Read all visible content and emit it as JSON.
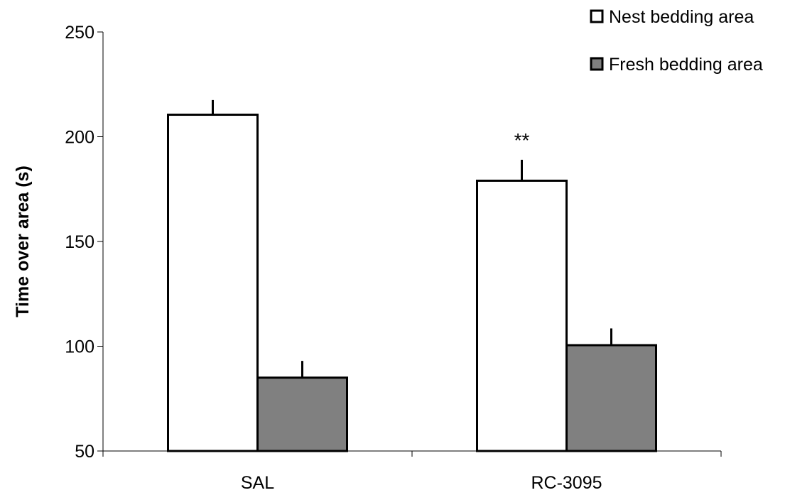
{
  "chart_data": {
    "type": "bar",
    "categories": [
      "SAL",
      "RC-3095"
    ],
    "series": [
      {
        "name": "Nest bedding area",
        "values": [
          210.5,
          179
        ],
        "errors": [
          7,
          10
        ],
        "color": "#ffffff"
      },
      {
        "name": "Fresh bedding area",
        "values": [
          85,
          100.5
        ],
        "errors": [
          8,
          8
        ],
        "color": "#808080"
      }
    ],
    "ylabel": "Time over area (s)",
    "xlabel": "",
    "ylim": [
      50,
      250
    ],
    "yticks": [
      50,
      100,
      150,
      200,
      250
    ],
    "legend_position": "top-right",
    "grid": false,
    "annotations": [
      {
        "text": "**",
        "category": "RC-3095",
        "series": "Nest bedding area"
      }
    ]
  }
}
